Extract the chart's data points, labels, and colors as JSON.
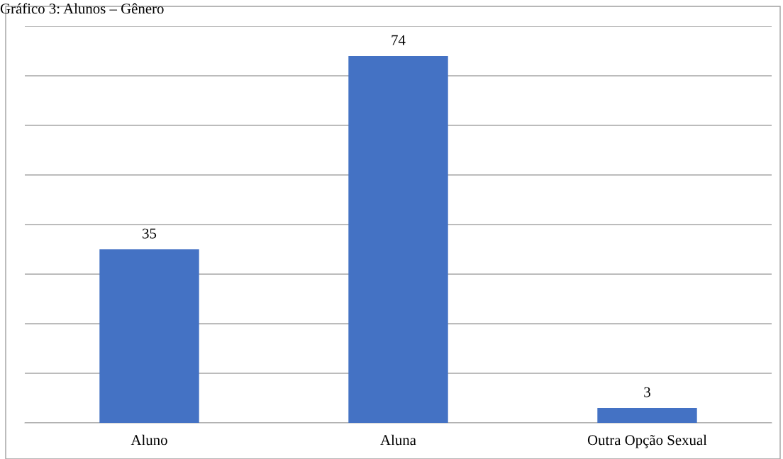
{
  "chart_data": {
    "type": "bar",
    "title": "Gráfico 3: Alunos – Gênero",
    "categories": [
      "Aluno",
      "Aluna",
      "Outra Opção Sexual"
    ],
    "values": [
      35,
      74,
      3
    ],
    "color": "#4472c4",
    "data_labels": true,
    "ylim": [
      0,
      80
    ],
    "yticks": [
      {
        "value": 0,
        "label": null
      },
      {
        "value": 10,
        "label": null
      },
      {
        "value": 20,
        "label": null
      },
      {
        "value": 30,
        "label": null
      },
      {
        "value": 40,
        "label": null
      },
      {
        "value": 50,
        "label": null
      },
      {
        "value": 60,
        "label": null
      },
      {
        "value": 70,
        "label": null
      },
      {
        "value": 80,
        "label": null
      }
    ],
    "grid": "y",
    "tick_labels": "x"
  }
}
